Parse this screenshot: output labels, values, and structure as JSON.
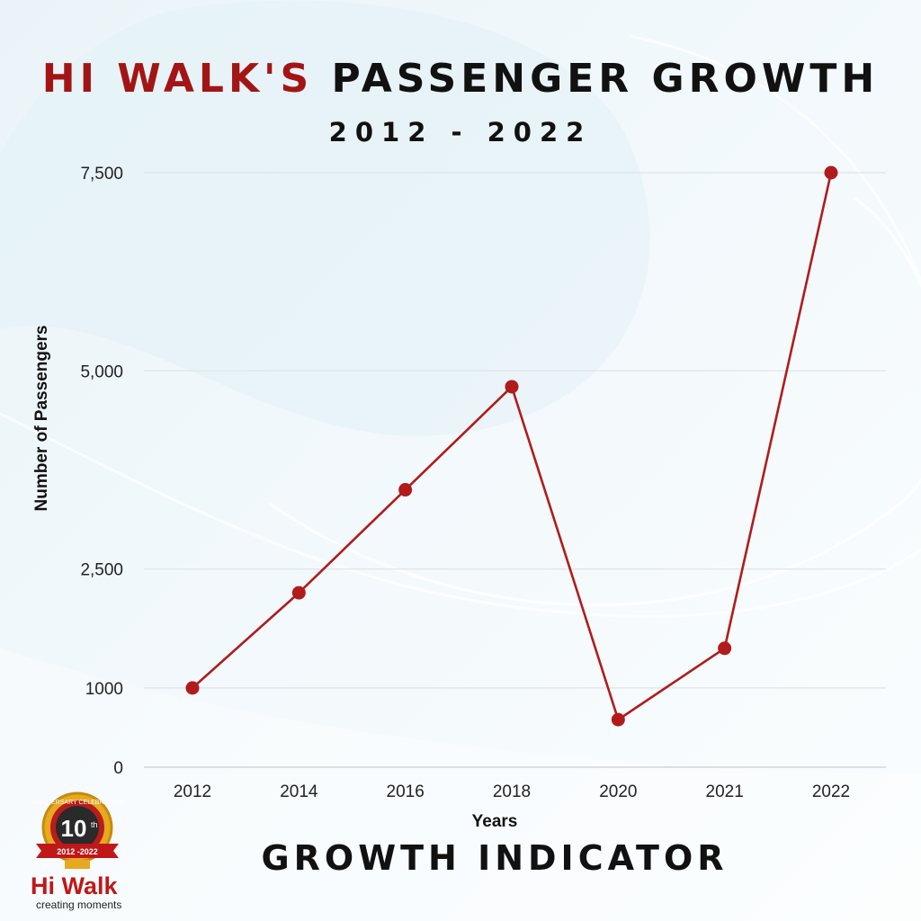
{
  "header": {
    "title_brand": "HI WALK'S",
    "title_rest": "PASSENGER GROWTH",
    "subtitle": "2012 - 2022"
  },
  "footer": {
    "label": "GROWTH INDICATOR"
  },
  "logo": {
    "ribbon_text": "ANNIVERSARY CELEBRATION",
    "number": "10",
    "suffix": "th",
    "years": "2012 -2022",
    "brand": "Hi Walk",
    "tagline": "creating moments"
  },
  "colors": {
    "accent": "#a31515",
    "line": "#b11b1b",
    "text": "#111111"
  },
  "chart_data": {
    "type": "line",
    "categories": [
      "2012",
      "2014",
      "2016",
      "2018",
      "2020",
      "2021",
      "2022"
    ],
    "series": [
      {
        "values": [
          1000,
          2200,
          3500,
          4800,
          600,
          1500,
          7500
        ]
      }
    ],
    "y_ticks": [
      0,
      1000,
      2500,
      5000,
      7500
    ],
    "y_tick_labels": [
      "0",
      "1000",
      "2,500",
      "5,000",
      "7,500"
    ],
    "xlabel": "Years",
    "ylabel": "Number of Passengers",
    "ylim": [
      0,
      7500
    ],
    "grid": true
  }
}
